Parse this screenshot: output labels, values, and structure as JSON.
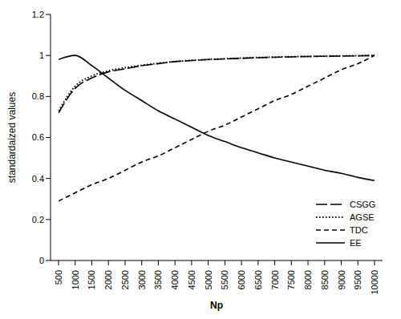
{
  "chart_data": {
    "type": "line",
    "x_label": "Np",
    "y_label": "standardaized values",
    "x": [
      500,
      1000,
      1500,
      2000,
      2500,
      3000,
      3500,
      4000,
      4500,
      5000,
      5500,
      6000,
      6500,
      7000,
      7500,
      8000,
      8500,
      9000,
      9500,
      10000
    ],
    "xlim": [
      500,
      10000
    ],
    "xticks": [
      500,
      1000,
      1500,
      2000,
      2500,
      3000,
      3500,
      4000,
      4500,
      5000,
      5500,
      6000,
      6500,
      7000,
      7500,
      8000,
      8500,
      9000,
      9500,
      10000
    ],
    "ylim": [
      0,
      1.2
    ],
    "yticks": [
      0,
      0.2,
      0.4,
      0.6,
      0.8,
      1,
      1.2
    ],
    "grid": false,
    "legend": "lower right",
    "series": [
      {
        "name": "CSGG",
        "color": "#000000",
        "line_style": "dashdot",
        "values": [
          0.72,
          0.84,
          0.89,
          0.92,
          0.935,
          0.95,
          0.96,
          0.97,
          0.975,
          0.98,
          0.983,
          0.986,
          0.989,
          0.991,
          0.993,
          0.995,
          0.996,
          0.997,
          0.998,
          1.0
        ]
      },
      {
        "name": "AGSE",
        "color": "#000000",
        "line_style": "dotted",
        "values": [
          0.73,
          0.85,
          0.9,
          0.925,
          0.94,
          0.952,
          0.962,
          0.97,
          0.976,
          0.98,
          0.984,
          0.987,
          0.99,
          0.992,
          0.994,
          0.995,
          0.997,
          0.998,
          0.999,
          1.0
        ]
      },
      {
        "name": "TDC",
        "color": "#000000",
        "line_style": "dashed",
        "values": [
          0.29,
          0.33,
          0.37,
          0.4,
          0.44,
          0.48,
          0.51,
          0.55,
          0.59,
          0.63,
          0.66,
          0.7,
          0.74,
          0.78,
          0.81,
          0.85,
          0.89,
          0.93,
          0.96,
          1.0
        ]
      },
      {
        "name": "EE",
        "color": "#000000",
        "line_style": "solid",
        "values": [
          0.98,
          1.0,
          0.95,
          0.89,
          0.83,
          0.78,
          0.73,
          0.69,
          0.65,
          0.61,
          0.58,
          0.55,
          0.525,
          0.5,
          0.48,
          0.46,
          0.44,
          0.425,
          0.405,
          0.39
        ]
      }
    ]
  }
}
